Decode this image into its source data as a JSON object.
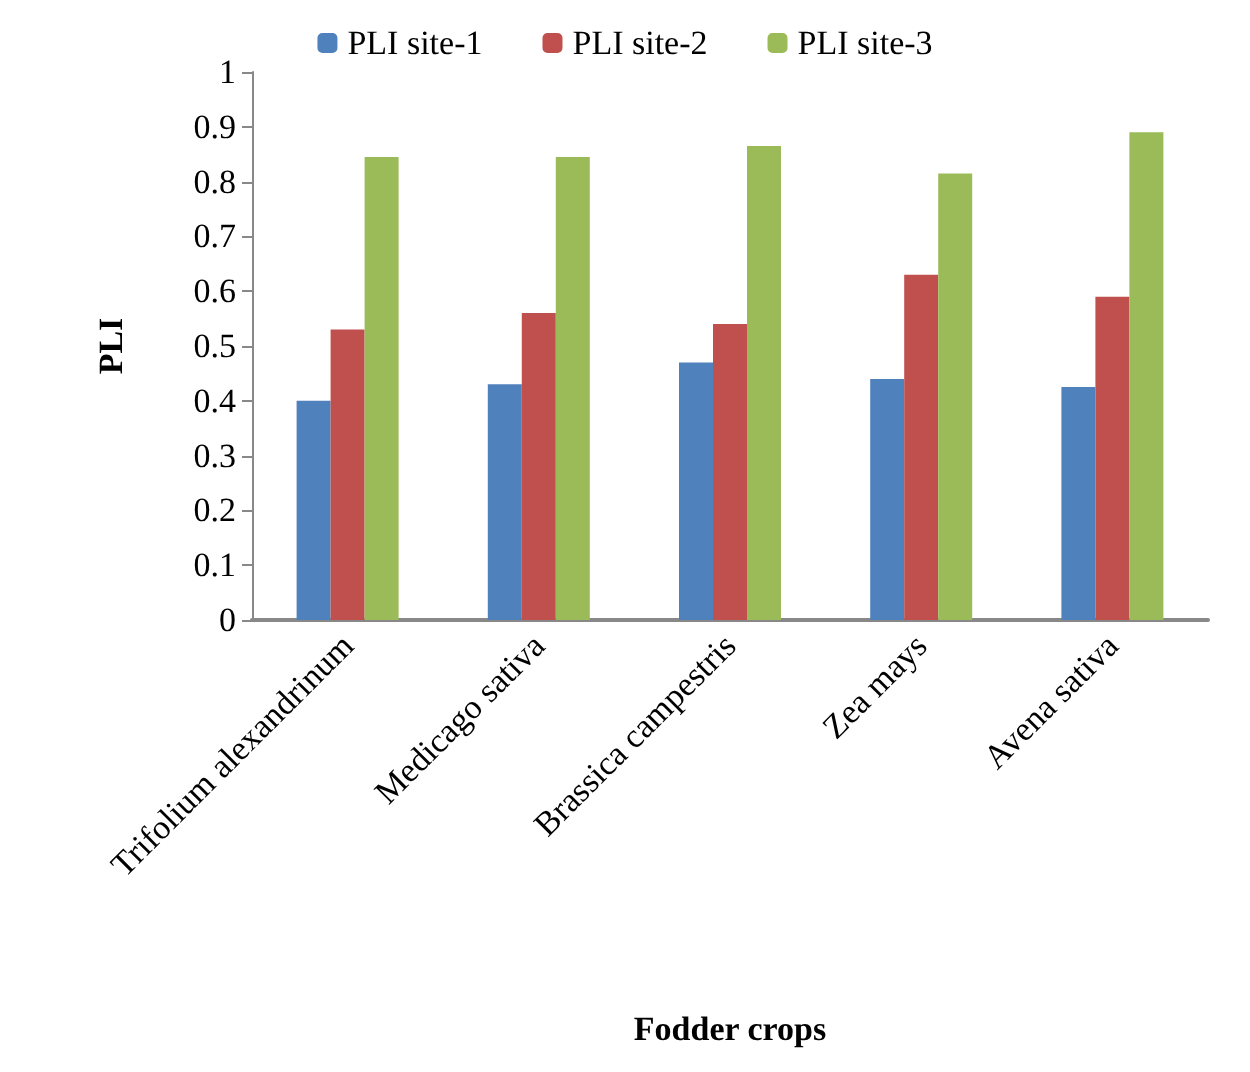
{
  "chart_data": {
    "type": "bar",
    "xlabel": "Fodder crops",
    "ylabel": "PLI",
    "categories": [
      "Trifolium alexandrinum",
      "Medicago sativa",
      "Brassica campestris",
      "Zea mays",
      "Avena sativa"
    ],
    "series": [
      {
        "name": "PLI site-1",
        "color": "#4f81bd",
        "values": [
          0.4,
          0.43,
          0.47,
          0.44,
          0.425
        ]
      },
      {
        "name": "PLI site-2",
        "color": "#c0504d",
        "values": [
          0.53,
          0.56,
          0.54,
          0.63,
          0.59
        ]
      },
      {
        "name": "PLI site-3",
        "color": "#9bbb59",
        "values": [
          0.845,
          0.845,
          0.865,
          0.815,
          0.89
        ]
      }
    ],
    "ylim": [
      0,
      1
    ],
    "yticks": [
      0,
      0.1,
      0.2,
      0.3,
      0.4,
      0.5,
      0.6,
      0.7,
      0.8,
      0.9,
      1
    ],
    "grid": false,
    "legend": "top"
  }
}
